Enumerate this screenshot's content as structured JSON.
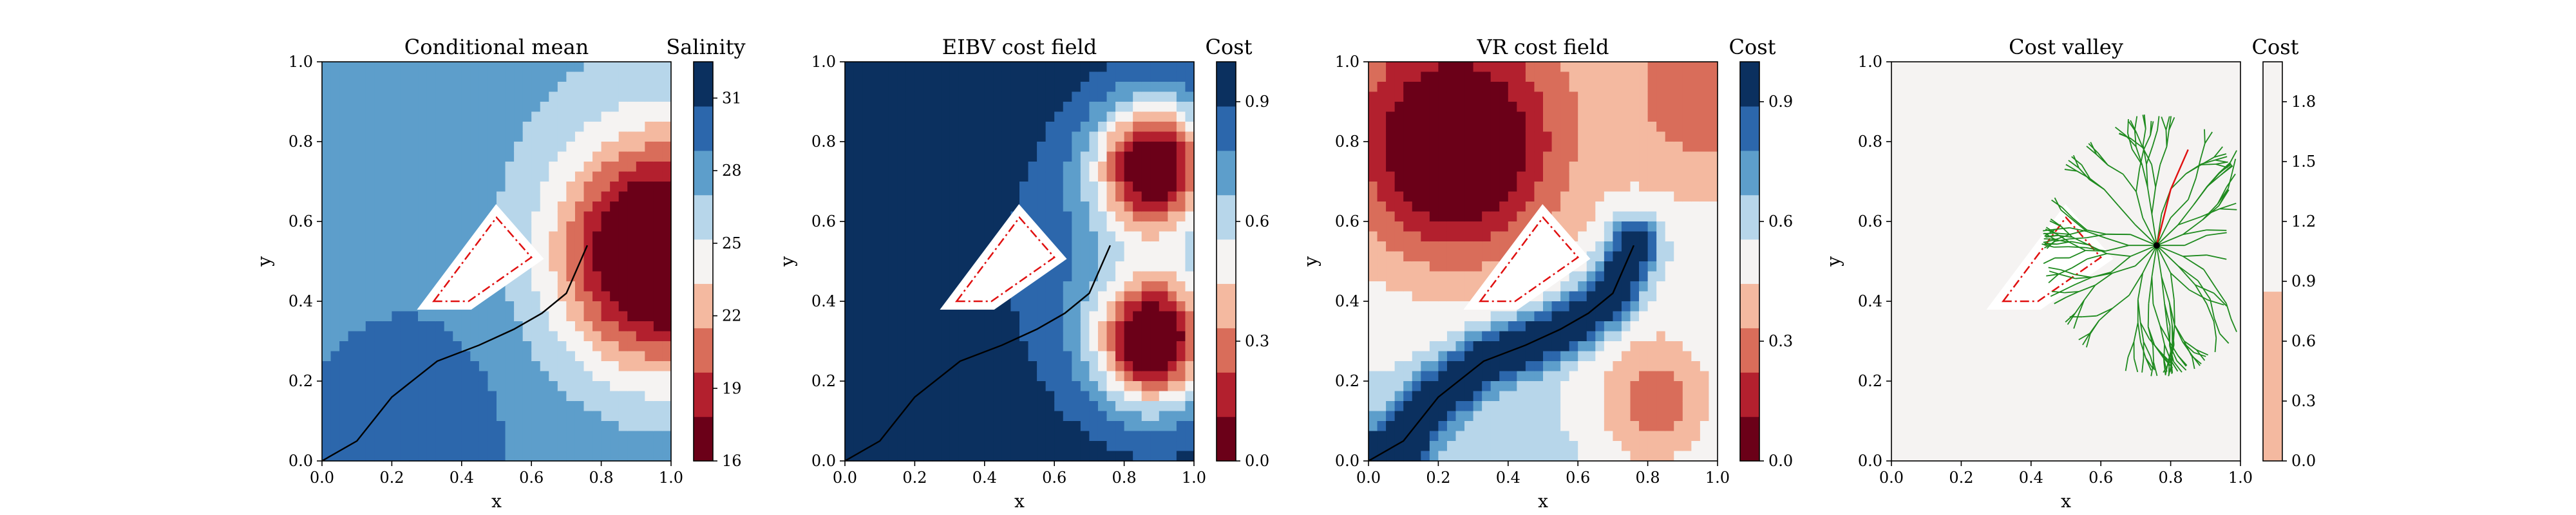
{
  "chart_data": [
    {
      "type": "heatmap",
      "title": "Conditional mean",
      "xlabel": "x",
      "ylabel": "y",
      "xlim": [
        0.0,
        1.0
      ],
      "ylim": [
        0.0,
        1.0
      ],
      "xticks": [
        "0.0",
        "0.2",
        "0.4",
        "0.6",
        "0.8",
        "1.0"
      ],
      "yticks": [
        "0.0",
        "0.2",
        "0.4",
        "0.6",
        "0.8",
        "1.0"
      ],
      "colorbar": {
        "label": "Salinity",
        "range": [
          16,
          32.5
        ],
        "ticks": [
          16,
          19,
          22,
          25,
          28,
          31
        ],
        "tick_labels": [
          "16",
          "19",
          "22",
          "25",
          "28",
          "31"
        ],
        "colormap": "RdBu"
      },
      "field_features": [
        {
          "kind": "fresh-water plume (low salinity)",
          "center": [
            0.95,
            0.52
          ],
          "value_min": 16
        },
        {
          "kind": "high salinity pocket",
          "center": [
            0.28,
            0.12
          ],
          "value_max": 32
        }
      ],
      "obstacle_polygon": [
        [
          0.32,
          0.4
        ],
        [
          0.5,
          0.61
        ],
        [
          0.6,
          0.51
        ],
        [
          0.42,
          0.4
        ]
      ],
      "trajectory": [
        [
          0.0,
          0.0
        ],
        [
          0.1,
          0.05
        ],
        [
          0.2,
          0.16
        ],
        [
          0.33,
          0.25
        ],
        [
          0.45,
          0.29
        ],
        [
          0.55,
          0.33
        ],
        [
          0.63,
          0.37
        ],
        [
          0.7,
          0.42
        ],
        [
          0.74,
          0.5
        ],
        [
          0.76,
          0.54
        ]
      ]
    },
    {
      "type": "heatmap",
      "title": "EIBV cost field",
      "xlabel": "x",
      "ylabel": "y",
      "xlim": [
        0.0,
        1.0
      ],
      "ylim": [
        0.0,
        1.0
      ],
      "xticks": [
        "0.0",
        "0.2",
        "0.4",
        "0.6",
        "0.8",
        "1.0"
      ],
      "yticks": [
        "0.0",
        "0.2",
        "0.4",
        "0.6",
        "0.8",
        "1.0"
      ],
      "colorbar": {
        "label": "Cost",
        "range": [
          0.0,
          1.0
        ],
        "ticks": [
          0.0,
          0.3,
          0.6,
          0.9
        ],
        "tick_labels": [
          "0.0",
          "0.3",
          "0.6",
          "0.9"
        ],
        "colormap": "RdBu"
      },
      "field_features": [
        {
          "kind": "low cost peak",
          "center": [
            0.88,
            0.74
          ]
        },
        {
          "kind": "low cost peak",
          "center": [
            0.88,
            0.3
          ]
        }
      ],
      "obstacle_polygon": [
        [
          0.32,
          0.4
        ],
        [
          0.5,
          0.61
        ],
        [
          0.6,
          0.51
        ],
        [
          0.42,
          0.4
        ]
      ],
      "trajectory": [
        [
          0.0,
          0.0
        ],
        [
          0.1,
          0.05
        ],
        [
          0.2,
          0.16
        ],
        [
          0.33,
          0.25
        ],
        [
          0.45,
          0.29
        ],
        [
          0.55,
          0.33
        ],
        [
          0.63,
          0.37
        ],
        [
          0.7,
          0.42
        ],
        [
          0.74,
          0.5
        ],
        [
          0.76,
          0.54
        ]
      ]
    },
    {
      "type": "heatmap",
      "title": "VR cost field",
      "xlabel": "x",
      "ylabel": "y",
      "xlim": [
        0.0,
        1.0
      ],
      "ylim": [
        0.0,
        1.0
      ],
      "xticks": [
        "0.0",
        "0.2",
        "0.4",
        "0.6",
        "0.8",
        "1.0"
      ],
      "yticks": [
        "0.0",
        "0.2",
        "0.4",
        "0.6",
        "0.8",
        "1.0"
      ],
      "colorbar": {
        "label": "Cost",
        "range": [
          0.0,
          1.0
        ],
        "ticks": [
          0.0,
          0.3,
          0.6,
          0.9
        ],
        "tick_labels": [
          "0.0",
          "0.3",
          "0.6",
          "0.9"
        ],
        "colormap": "RdBu"
      },
      "field_features": [
        {
          "kind": "low cost region",
          "center": [
            0.25,
            0.78
          ]
        },
        {
          "kind": "high cost ridge",
          "along": "trajectory"
        }
      ],
      "obstacle_polygon": [
        [
          0.32,
          0.4
        ],
        [
          0.5,
          0.61
        ],
        [
          0.6,
          0.51
        ],
        [
          0.42,
          0.4
        ]
      ],
      "trajectory": [
        [
          0.0,
          0.0
        ],
        [
          0.1,
          0.05
        ],
        [
          0.2,
          0.16
        ],
        [
          0.33,
          0.25
        ],
        [
          0.45,
          0.29
        ],
        [
          0.55,
          0.33
        ],
        [
          0.63,
          0.37
        ],
        [
          0.7,
          0.42
        ],
        [
          0.74,
          0.5
        ],
        [
          0.76,
          0.54
        ]
      ]
    },
    {
      "type": "heatmap",
      "title": "Cost valley",
      "xlabel": "x",
      "ylabel": "y",
      "xlim": [
        0.0,
        1.0
      ],
      "ylim": [
        0.0,
        1.0
      ],
      "xticks": [
        "0.0",
        "0.2",
        "0.4",
        "0.6",
        "0.8",
        "1.0"
      ],
      "yticks": [
        "0.0",
        "0.2",
        "0.4",
        "0.6",
        "0.8",
        "1.0"
      ],
      "colorbar": {
        "label": "Cost",
        "range": [
          0.0,
          2.0
        ],
        "ticks": [
          0.0,
          0.3,
          0.6,
          0.9,
          1.2,
          1.5,
          1.8
        ],
        "tick_labels": [
          "0.0",
          "0.3",
          "0.6",
          "0.9",
          "1.2",
          "1.5",
          "1.8"
        ],
        "colormap": "RdBu"
      },
      "tree_root": [
        0.76,
        0.54
      ],
      "tree_color": "#1e8a1e",
      "best_path": [
        [
          0.76,
          0.54
        ],
        [
          0.8,
          0.68
        ],
        [
          0.85,
          0.78
        ]
      ],
      "obstacle_polygon": [
        [
          0.32,
          0.4
        ],
        [
          0.5,
          0.61
        ],
        [
          0.6,
          0.51
        ],
        [
          0.42,
          0.4
        ]
      ]
    }
  ]
}
